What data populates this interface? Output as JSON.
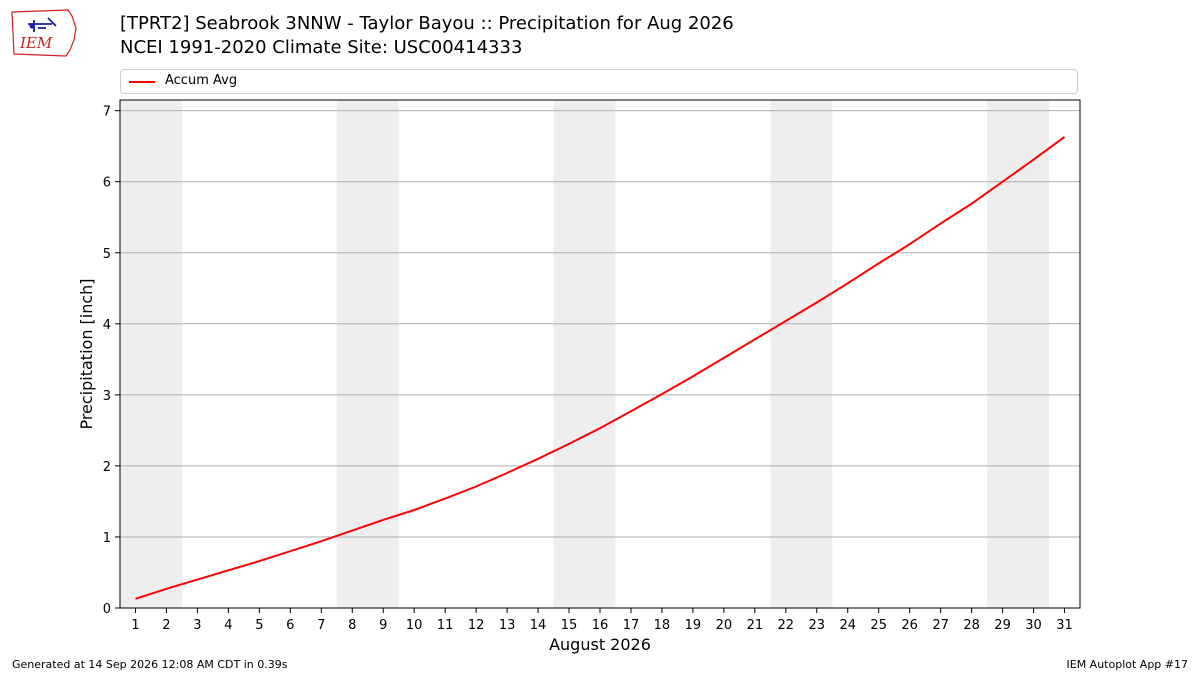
{
  "header": {
    "title_line1": "[TPRT2] Seabrook 3NNW - Taylor Bayou :: Precipitation for Aug 2026",
    "title_line2": "NCEI 1991-2020 Climate Site: USC00414333",
    "logo_text": "IEM"
  },
  "legend": {
    "label": "Accum Avg"
  },
  "footer": {
    "left": "Generated at 14 Sep 2026 12:08 AM CDT in 0.39s",
    "right": "IEM Autoplot App #17"
  },
  "colors": {
    "series": "#ff0000",
    "weekend_shade": "#eeeeee",
    "grid": "#b0b0b0",
    "logo": "#cc2222"
  },
  "chart_data": {
    "type": "line",
    "xlabel": "August 2026",
    "ylabel": "Precipitation [inch]",
    "xlim": [
      0.5,
      31.5
    ],
    "ylim": [
      0,
      7.15
    ],
    "x": [
      1,
      2,
      3,
      4,
      5,
      6,
      7,
      8,
      9,
      10,
      11,
      12,
      13,
      14,
      15,
      16,
      17,
      18,
      19,
      20,
      21,
      22,
      23,
      24,
      25,
      26,
      27,
      28,
      29,
      30,
      31
    ],
    "xticks": [
      "1",
      "2",
      "3",
      "4",
      "5",
      "6",
      "7",
      "8",
      "9",
      "10",
      "11",
      "12",
      "13",
      "14",
      "15",
      "16",
      "17",
      "18",
      "19",
      "20",
      "21",
      "22",
      "23",
      "24",
      "25",
      "26",
      "27",
      "28",
      "29",
      "30",
      "31"
    ],
    "yticks": [
      0,
      1,
      2,
      3,
      4,
      5,
      6,
      7
    ],
    "grid": "horizontal",
    "legend_position": "top",
    "shaded_weekends": [
      [
        1,
        2
      ],
      [
        8,
        9
      ],
      [
        15,
        16
      ],
      [
        22,
        23
      ],
      [
        29,
        30
      ]
    ],
    "series": [
      {
        "name": "Accum Avg",
        "color": "#ff0000",
        "values": [
          0.13,
          0.27,
          0.4,
          0.53,
          0.66,
          0.8,
          0.94,
          1.09,
          1.24,
          1.38,
          1.54,
          1.71,
          1.9,
          2.1,
          2.31,
          2.53,
          2.77,
          3.01,
          3.26,
          3.52,
          3.78,
          4.04,
          4.3,
          4.57,
          4.85,
          5.12,
          5.41,
          5.69,
          6.0,
          6.31,
          6.63
        ]
      }
    ]
  }
}
